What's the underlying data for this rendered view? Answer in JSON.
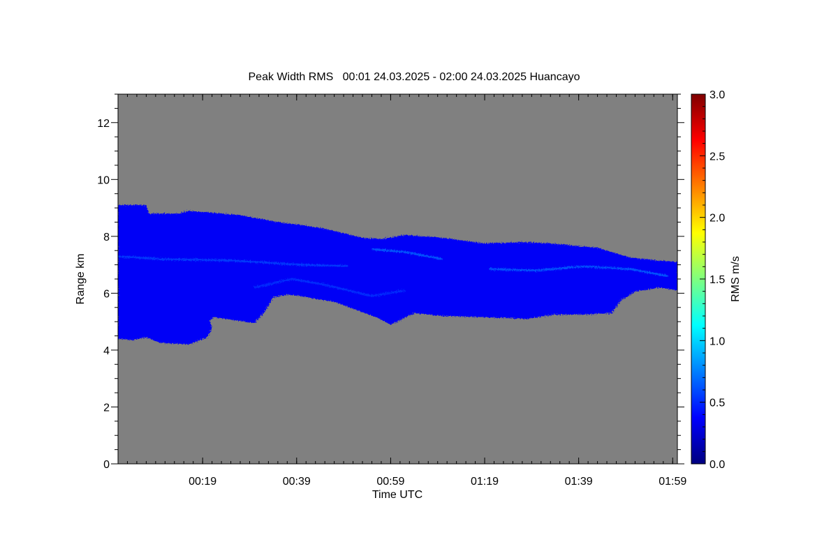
{
  "chart_data": {
    "type": "heatmap",
    "title": "Peak Width RMS   00:01 24.03.2025 - 02:00 24.03.2025 Huancayo",
    "xlabel": "Time UTC",
    "ylabel": "Range km",
    "colorbar_label": "RMS m/s",
    "xlim_minutes": [
      1,
      120
    ],
    "ylim": [
      0,
      13
    ],
    "x_ticks": [
      {
        "label": "00:19",
        "minute": 19
      },
      {
        "label": "00:39",
        "minute": 39
      },
      {
        "label": "00:59",
        "minute": 59
      },
      {
        "label": "01:19",
        "minute": 79
      },
      {
        "label": "01:39",
        "minute": 99
      },
      {
        "label": "01:59",
        "minute": 119
      }
    ],
    "y_ticks": [
      "0",
      "2",
      "4",
      "6",
      "8",
      "10",
      "12"
    ],
    "colorbar_ticks": [
      "0.0",
      "0.5",
      "1.0",
      "1.5",
      "2.0",
      "2.5",
      "3.0"
    ],
    "colorbar_range": [
      0.0,
      3.0
    ],
    "background_color": "#808080",
    "echo_region": {
      "typical_value": 0.35,
      "top_km": [
        {
          "minute": 1,
          "km": 9.1
        },
        {
          "minute": 7,
          "km": 9.1
        },
        {
          "minute": 7.5,
          "km": 8.8
        },
        {
          "minute": 14,
          "km": 8.8
        },
        {
          "minute": 16,
          "km": 8.9
        },
        {
          "minute": 27,
          "km": 8.75
        },
        {
          "minute": 35,
          "km": 8.5
        },
        {
          "minute": 40,
          "km": 8.4
        },
        {
          "minute": 44,
          "km": 8.3
        },
        {
          "minute": 48,
          "km": 8.15
        },
        {
          "minute": 53,
          "km": 7.95
        },
        {
          "minute": 57,
          "km": 7.9
        },
        {
          "minute": 62,
          "km": 8.05
        },
        {
          "minute": 70,
          "km": 7.95
        },
        {
          "minute": 79,
          "km": 7.75
        },
        {
          "minute": 87,
          "km": 7.8
        },
        {
          "minute": 93,
          "km": 7.75
        },
        {
          "minute": 103,
          "km": 7.6
        },
        {
          "minute": 110,
          "km": 7.25
        },
        {
          "minute": 116,
          "km": 7.15
        },
        {
          "minute": 120,
          "km": 7.1
        }
      ],
      "bottom_km": [
        {
          "minute": 1,
          "km": 4.4
        },
        {
          "minute": 4,
          "km": 4.35
        },
        {
          "minute": 7,
          "km": 4.45
        },
        {
          "minute": 10,
          "km": 4.25
        },
        {
          "minute": 16,
          "km": 4.2
        },
        {
          "minute": 20,
          "km": 4.45
        },
        {
          "minute": 21,
          "km": 4.75
        },
        {
          "minute": 20.5,
          "km": 5.05
        },
        {
          "minute": 21.5,
          "km": 5.15
        },
        {
          "minute": 24,
          "km": 5.1
        },
        {
          "minute": 30,
          "km": 4.95
        },
        {
          "minute": 32,
          "km": 5.3
        },
        {
          "minute": 34,
          "km": 5.85
        },
        {
          "minute": 37,
          "km": 5.95
        },
        {
          "minute": 40,
          "km": 5.9
        },
        {
          "minute": 43,
          "km": 5.8
        },
        {
          "minute": 47,
          "km": 5.7
        },
        {
          "minute": 51,
          "km": 5.45
        },
        {
          "minute": 56,
          "km": 5.15
        },
        {
          "minute": 59,
          "km": 4.9
        },
        {
          "minute": 61,
          "km": 5.05
        },
        {
          "minute": 64,
          "km": 5.3
        },
        {
          "minute": 70,
          "km": 5.2
        },
        {
          "minute": 80,
          "km": 5.15
        },
        {
          "minute": 88,
          "km": 5.1
        },
        {
          "minute": 94,
          "km": 5.25
        },
        {
          "minute": 100,
          "km": 5.25
        },
        {
          "minute": 106,
          "km": 5.3
        },
        {
          "minute": 108,
          "km": 5.75
        },
        {
          "minute": 111,
          "km": 6.05
        },
        {
          "minute": 116,
          "km": 6.2
        },
        {
          "minute": 120,
          "km": 6.1
        }
      ],
      "streaks": [
        {
          "value": 0.6,
          "points": [
            [
              1,
              7.3
            ],
            [
              10,
              7.2
            ],
            [
              25,
              7.15
            ],
            [
              40,
              7.0
            ],
            [
              50,
              6.95
            ]
          ]
        },
        {
          "value": 0.7,
          "points": [
            [
              55,
              7.55
            ],
            [
              62,
              7.45
            ],
            [
              70,
              7.2
            ]
          ]
        },
        {
          "value": 0.7,
          "points": [
            [
              80,
              6.85
            ],
            [
              90,
              6.8
            ],
            [
              100,
              6.95
            ],
            [
              110,
              6.85
            ],
            [
              118,
              6.6
            ]
          ]
        },
        {
          "value": 0.55,
          "points": [
            [
              30,
              6.2
            ],
            [
              38,
              6.5
            ],
            [
              45,
              6.3
            ],
            [
              55,
              5.9
            ],
            [
              62,
              6.1
            ]
          ]
        }
      ]
    }
  }
}
